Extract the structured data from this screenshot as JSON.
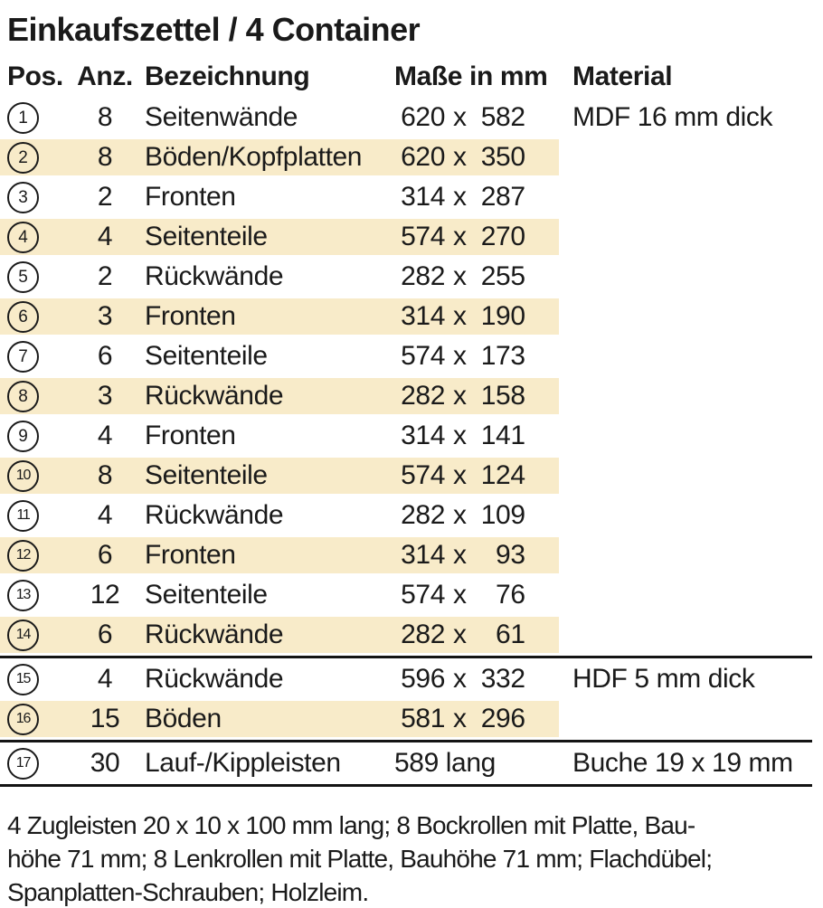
{
  "title": "Einkaufszettel / 4 Container",
  "columns": {
    "pos": "Pos.",
    "anz": "Anz.",
    "name": "Bezeichnung",
    "size": "Maße in mm",
    "material": "Material"
  },
  "dim_sep": "x",
  "colors": {
    "stripe": "#f8ebc9",
    "text": "#1a1a1a",
    "rule": "#141414",
    "background": "#ffffff"
  },
  "rows": [
    {
      "pos": "1",
      "anz": "8",
      "name": "Seitenwände",
      "w": "620",
      "h": "582",
      "material": "MDF 16 mm dick",
      "shaded": false,
      "rule_after": false
    },
    {
      "pos": "2",
      "anz": "8",
      "name": "Böden/Kopfplatten",
      "w": "620",
      "h": "350",
      "shaded": true,
      "rule_after": false
    },
    {
      "pos": "3",
      "anz": "2",
      "name": "Fronten",
      "w": "314",
      "h": "287",
      "shaded": false,
      "rule_after": false
    },
    {
      "pos": "4",
      "anz": "4",
      "name": "Seitenteile",
      "w": "574",
      "h": "270",
      "shaded": true,
      "rule_after": false
    },
    {
      "pos": "5",
      "anz": "2",
      "name": "Rückwände",
      "w": "282",
      "h": "255",
      "shaded": false,
      "rule_after": false
    },
    {
      "pos": "6",
      "anz": "3",
      "name": "Fronten",
      "w": "314",
      "h": "190",
      "shaded": true,
      "rule_after": false
    },
    {
      "pos": "7",
      "anz": "6",
      "name": "Seitenteile",
      "w": "574",
      "h": "173",
      "shaded": false,
      "rule_after": false
    },
    {
      "pos": "8",
      "anz": "3",
      "name": "Rückwände",
      "w": "282",
      "h": "158",
      "shaded": true,
      "rule_after": false
    },
    {
      "pos": "9",
      "anz": "4",
      "name": "Fronten",
      "w": "314",
      "h": "141",
      "shaded": false,
      "rule_after": false
    },
    {
      "pos": "10",
      "anz": "8",
      "name": "Seitenteile",
      "w": "574",
      "h": "124",
      "shaded": true,
      "rule_after": false
    },
    {
      "pos": "11",
      "anz": "4",
      "name": "Rückwände",
      "w": "282",
      "h": "109",
      "shaded": false,
      "rule_after": false
    },
    {
      "pos": "12",
      "anz": "6",
      "name": "Fronten",
      "w": "314",
      "h": "93",
      "shaded": true,
      "rule_after": false
    },
    {
      "pos": "13",
      "anz": "12",
      "name": "Seitenteile",
      "w": "574",
      "h": "76",
      "shaded": false,
      "rule_after": false
    },
    {
      "pos": "14",
      "anz": "6",
      "name": "Rückwände",
      "w": "282",
      "h": "61",
      "shaded": true,
      "rule_after": true
    },
    {
      "pos": "15",
      "anz": "4",
      "name": "Rückwände",
      "w": "596",
      "h": "332",
      "material": "HDF 5 mm dick",
      "shaded": false,
      "rule_after": false
    },
    {
      "pos": "16",
      "anz": "15",
      "name": "Böden",
      "w": "581",
      "h": "296",
      "shaded": true,
      "rule_after": true
    },
    {
      "pos": "17",
      "anz": "30",
      "name": "Lauf-/Kippleisten",
      "size_text": "589 lang",
      "material": "Buche 19 x 19 mm",
      "shaded": false,
      "rule_after": true
    }
  ],
  "footer_lines": [
    "4 Zugleisten 20 x 10 x 100 mm lang; 8 Bockrollen mit Platte, Bau-",
    "höhe 71 mm; 8 Lenkrollen mit Platte, Bauhöhe 71 mm; Flachdübel;",
    "Spanplatten-Schrauben; Holzleim."
  ]
}
